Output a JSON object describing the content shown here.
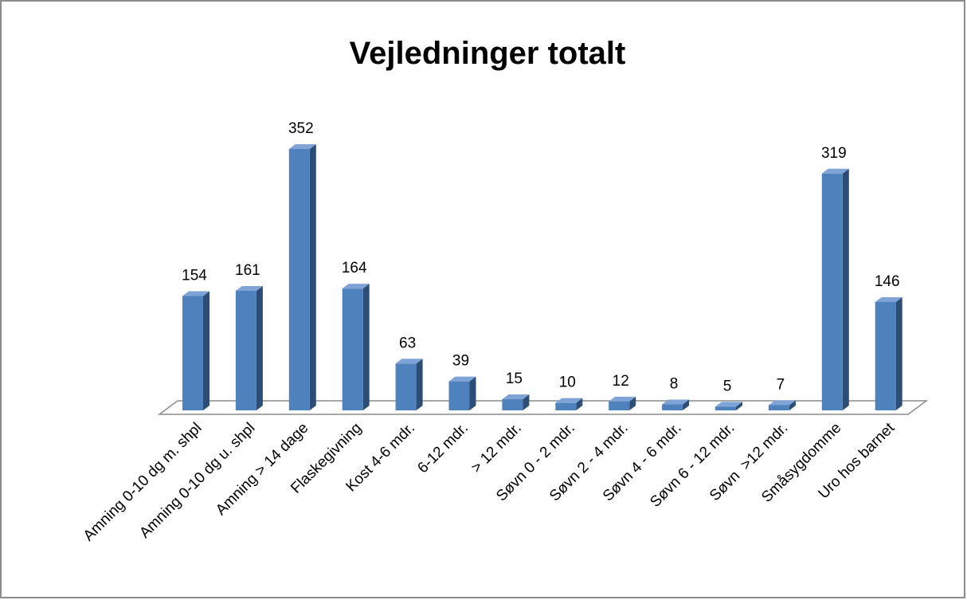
{
  "chart_data": {
    "type": "bar3d",
    "title": "Vejledninger totalt",
    "categories": [
      "Amning 0-10 dg m. shpl",
      "Amning 0-10 dg u. shpl",
      "Amning > 14 dage",
      "Flaskegivning",
      "Kost 4-6 mdr.",
      "6-12 mdr.",
      "> 12 mdr.",
      "Søvn 0 - 2 mdr.",
      "Søvn 2 - 4 mdr.",
      "Søvn 4 - 6 mdr.",
      "Søvn 6 - 12 mdr.",
      "Søvn  >12 mdr.",
      "Småsygdomme",
      "Uro hos barnet"
    ],
    "values": [
      154,
      161,
      352,
      164,
      63,
      39,
      15,
      10,
      12,
      8,
      5,
      7,
      319,
      146
    ],
    "color": "#4f81bd"
  }
}
